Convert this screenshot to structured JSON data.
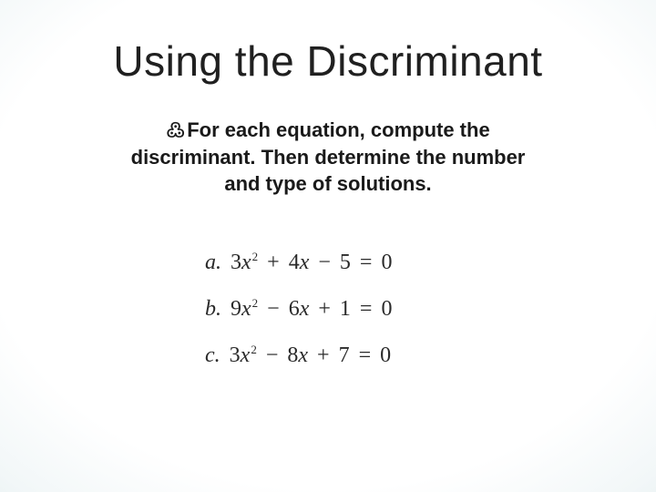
{
  "slide": {
    "background": {
      "center_color": "#ffffff",
      "mid_color": "#d9e8ea",
      "edge_color": "#9cc1c5"
    },
    "title": {
      "text": "Using the Discriminant",
      "fontsize": 46,
      "color": "#202020",
      "weight": "400"
    },
    "subtitle": {
      "bullet_glyph": "߷",
      "line1": "For each equation, compute the",
      "line2": "discriminant. Then determine the number",
      "line3": "and type of solutions.",
      "fontsize": 22,
      "color": "#1a1a1a",
      "weight": "700"
    },
    "equations": {
      "fontsize": 24,
      "color": "#2a2a2a",
      "font_family": "Times New Roman",
      "items": [
        {
          "label": "a.",
          "a": "3",
          "b_sign": "+",
          "b": "4",
          "c_sign": "−",
          "c": "5"
        },
        {
          "label": "b.",
          "a": "9",
          "b_sign": "−",
          "b": "6",
          "c_sign": "+",
          "c": "1"
        },
        {
          "label": "c.",
          "a": "3",
          "b_sign": "−",
          "b": "8",
          "c_sign": "+",
          "c": "7"
        }
      ],
      "rhs": "0",
      "var": "x",
      "exp": "2"
    }
  }
}
